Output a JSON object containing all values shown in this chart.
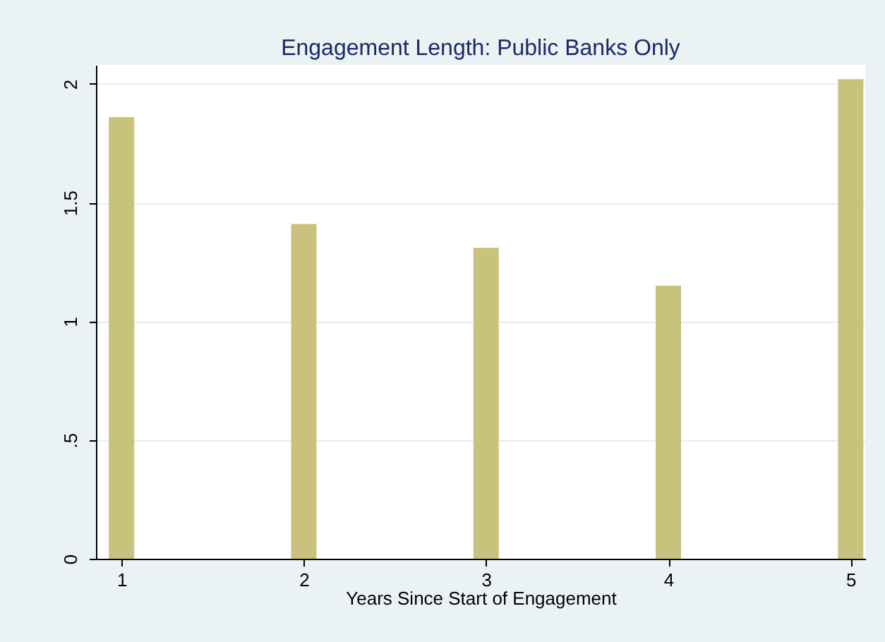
{
  "chart_data": {
    "type": "bar",
    "title": "Engagement Length: Public Banks Only",
    "xlabel": "Years Since Start of Engagement",
    "x": [
      1,
      2,
      3,
      4,
      5
    ],
    "series": [
      {
        "color": "#c9c27c",
        "values": [
          1.86,
          1.41,
          1.31,
          1.15,
          2.02
        ]
      }
    ],
    "xlim": [
      0.86,
      5.08
    ],
    "xticks": [
      1,
      2,
      3,
      4,
      5
    ],
    "ylim": [
      0,
      2.08
    ],
    "yticks": [
      0,
      {
        "value": 0.5,
        "label": ".5"
      },
      1,
      1.5,
      2
    ],
    "grid": "y",
    "legend": false
  }
}
